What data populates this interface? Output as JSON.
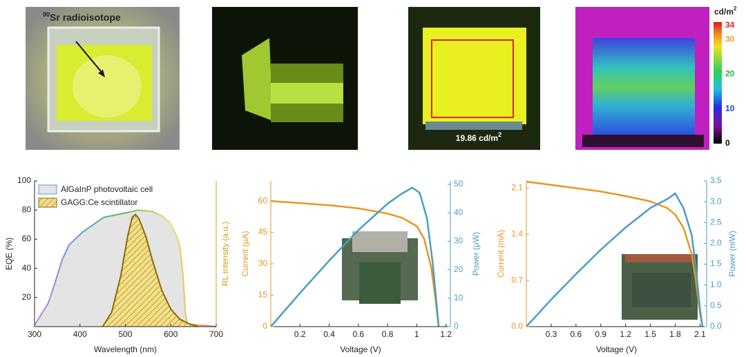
{
  "images": {
    "source_label": {
      "sup": "90",
      "text": "Sr radioisotope"
    },
    "luminance_label": {
      "text": "19.86 cd/m",
      "sup": "2"
    },
    "colorbar": {
      "unit": {
        "text": "cd/m",
        "sup": "2"
      },
      "clim": [
        0,
        35
      ],
      "ticks": [
        34,
        30,
        20,
        10,
        0
      ],
      "tick_colors": [
        "#e8202a",
        "#f0a020",
        "#28b848",
        "#2040e0",
        "#000000"
      ]
    }
  },
  "chart_data": [
    {
      "type": "area",
      "xlabel": "Wavelength (nm)",
      "ylabel": "EQE (%)",
      "y2label": "RL intensity (a.u.)",
      "y2color": "#c8a010",
      "xlim": [
        300,
        700
      ],
      "xticks": [
        300,
        400,
        500,
        600,
        700
      ],
      "ylim": [
        0,
        100
      ],
      "yticks": [
        20,
        40,
        60,
        80,
        100
      ],
      "y2lim": [
        0,
        100
      ],
      "legend": "upper left",
      "series": [
        {
          "name": "AlGaInP photovoltaic cell",
          "colors": [
            "#c080e0",
            "#5b9bd5",
            "#5cb85c",
            "#f0e060",
            "#f07050"
          ],
          "fill": "#e4e4e4",
          "x": [
            300,
            330,
            345,
            361,
            376,
            406,
            452,
            500,
            528,
            560,
            580,
            597,
            612,
            620,
            627,
            632,
            636,
            660,
            700
          ],
          "values": [
            1,
            16,
            30,
            46,
            56,
            65,
            75,
            78,
            80,
            79,
            76,
            72,
            63,
            55,
            35,
            10,
            2,
            1,
            0
          ]
        },
        {
          "name": "GAGG:Ce scintillator",
          "color": "#8a6a00",
          "fill": "#f5e08a",
          "hatch": true,
          "axis": "y2",
          "x": [
            450,
            470,
            490,
            505,
            515,
            522,
            530,
            545,
            560,
            580,
            600,
            620,
            640,
            660
          ],
          "values": [
            0,
            10,
            35,
            62,
            75,
            77,
            74,
            62,
            45,
            25,
            12,
            5,
            2,
            0
          ]
        }
      ]
    },
    {
      "type": "line",
      "xlabel": "Voltage (V)",
      "ylabel": "Current (μA)",
      "y2label": "Power (μW)",
      "ycolor": "#e8961e",
      "y2color": "#4a9cc4",
      "xlim": [
        0,
        1.23
      ],
      "xticks": [
        0.2,
        0.4,
        0.6,
        0.8,
        1.0,
        1.2
      ],
      "ylim": [
        0,
        69.6
      ],
      "yticks": [
        0,
        15,
        30,
        45,
        60
      ],
      "y2lim": [
        0,
        51.2
      ],
      "y2ticks": [
        0,
        10,
        20,
        30,
        40,
        50
      ],
      "series": [
        {
          "name": "Current",
          "color": "#e8961e",
          "x": [
            0,
            0.2,
            0.4,
            0.6,
            0.8,
            0.9,
            1.0,
            1.05,
            1.1,
            1.13,
            1.15
          ],
          "values": [
            60,
            59,
            58,
            56.5,
            54,
            52,
            48,
            42,
            28,
            12,
            0
          ]
        },
        {
          "name": "Power",
          "color": "#4a9cc4",
          "axis": "y2",
          "x": [
            0,
            0.2,
            0.4,
            0.6,
            0.8,
            0.9,
            0.97,
            1.02,
            1.07,
            1.11,
            1.15
          ],
          "values": [
            0,
            11.8,
            23.2,
            33.9,
            43.2,
            46.8,
            48.8,
            47,
            38,
            22,
            0
          ]
        }
      ]
    },
    {
      "type": "line",
      "xlabel": "Voltage (V)",
      "ylabel": "Current (mA)",
      "y2label": "Power (mW)",
      "ycolor": "#e8961e",
      "y2color": "#4a9cc4",
      "xlim": [
        0,
        2.18
      ],
      "xticks": [
        0.3,
        0.6,
        0.9,
        1.2,
        1.5,
        1.8,
        2.1
      ],
      "ylim": [
        0,
        2.21
      ],
      "yticks": [
        {
          "value": 0,
          "label": "0.0"
        },
        0.7,
        1.4,
        2.1
      ],
      "y2lim": [
        0,
        3.5
      ],
      "y2ticks": [
        {
          "value": 0,
          "label": "0.0"
        },
        0.5,
        {
          "value": 1,
          "label": "1.0"
        },
        1.5,
        {
          "value": 2,
          "label": "2.0"
        },
        2.5,
        {
          "value": 3,
          "label": "3.0"
        },
        3.5
      ],
      "series": [
        {
          "name": "Current",
          "color": "#e8961e",
          "x": [
            0,
            0.3,
            0.6,
            0.9,
            1.2,
            1.5,
            1.7,
            1.8,
            1.9,
            2.0,
            2.05,
            2.1,
            2.13
          ],
          "values": [
            2.2,
            2.15,
            2.1,
            2.05,
            1.98,
            1.9,
            1.8,
            1.7,
            1.5,
            1.1,
            0.7,
            0.2,
            0
          ]
        },
        {
          "name": "Power",
          "color": "#4a9cc4",
          "axis": "y2",
          "x": [
            0,
            0.3,
            0.6,
            0.9,
            1.2,
            1.5,
            1.7,
            1.8,
            1.9,
            2.0,
            2.05,
            2.1,
            2.13
          ],
          "values": [
            0,
            0.65,
            1.26,
            1.85,
            2.38,
            2.85,
            3.06,
            3.2,
            2.85,
            2.2,
            1.43,
            0.42,
            0
          ]
        }
      ]
    }
  ]
}
